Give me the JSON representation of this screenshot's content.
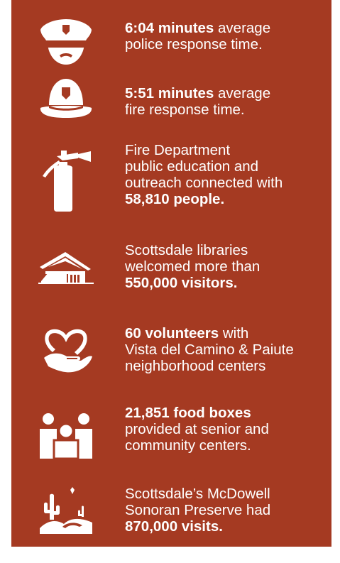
{
  "colors": {
    "background": "#a53a22",
    "text": "#ffffff",
    "page": "#ffffff"
  },
  "stats": [
    {
      "icon": "police-cap-icon",
      "bold_lead": "6:04 minutes",
      "rest_lead": " average",
      "line2": "police response time."
    },
    {
      "icon": "fire-helmet-icon",
      "bold_lead": "5:51 minutes",
      "rest_lead": " average",
      "line2": "fire response time."
    },
    {
      "icon": "fire-extinguisher-icon",
      "line1": "Fire Department",
      "line2": "public education and",
      "line3": "outreach connected with",
      "bold_end": "58,810 people."
    },
    {
      "icon": "library-building-icon",
      "line1": "Scottsdale libraries",
      "line2": "welcomed more than",
      "bold_end": "550,000 visitors."
    },
    {
      "icon": "heart-hand-icon",
      "bold_lead": "60 volunteers",
      "rest_lead": " with",
      "line2": "Vista del Camino & Paiute",
      "line3": "neighborhood centers"
    },
    {
      "icon": "people-group-icon",
      "bold_lead": "21,851 food boxes",
      "line2": "provided at senior and",
      "line3": "community centers."
    },
    {
      "icon": "desert-cactus-icon",
      "line1": "Scottsdale’s McDowell",
      "line2": "Sonoran Preserve had",
      "bold_end": "870,000 visits."
    }
  ]
}
